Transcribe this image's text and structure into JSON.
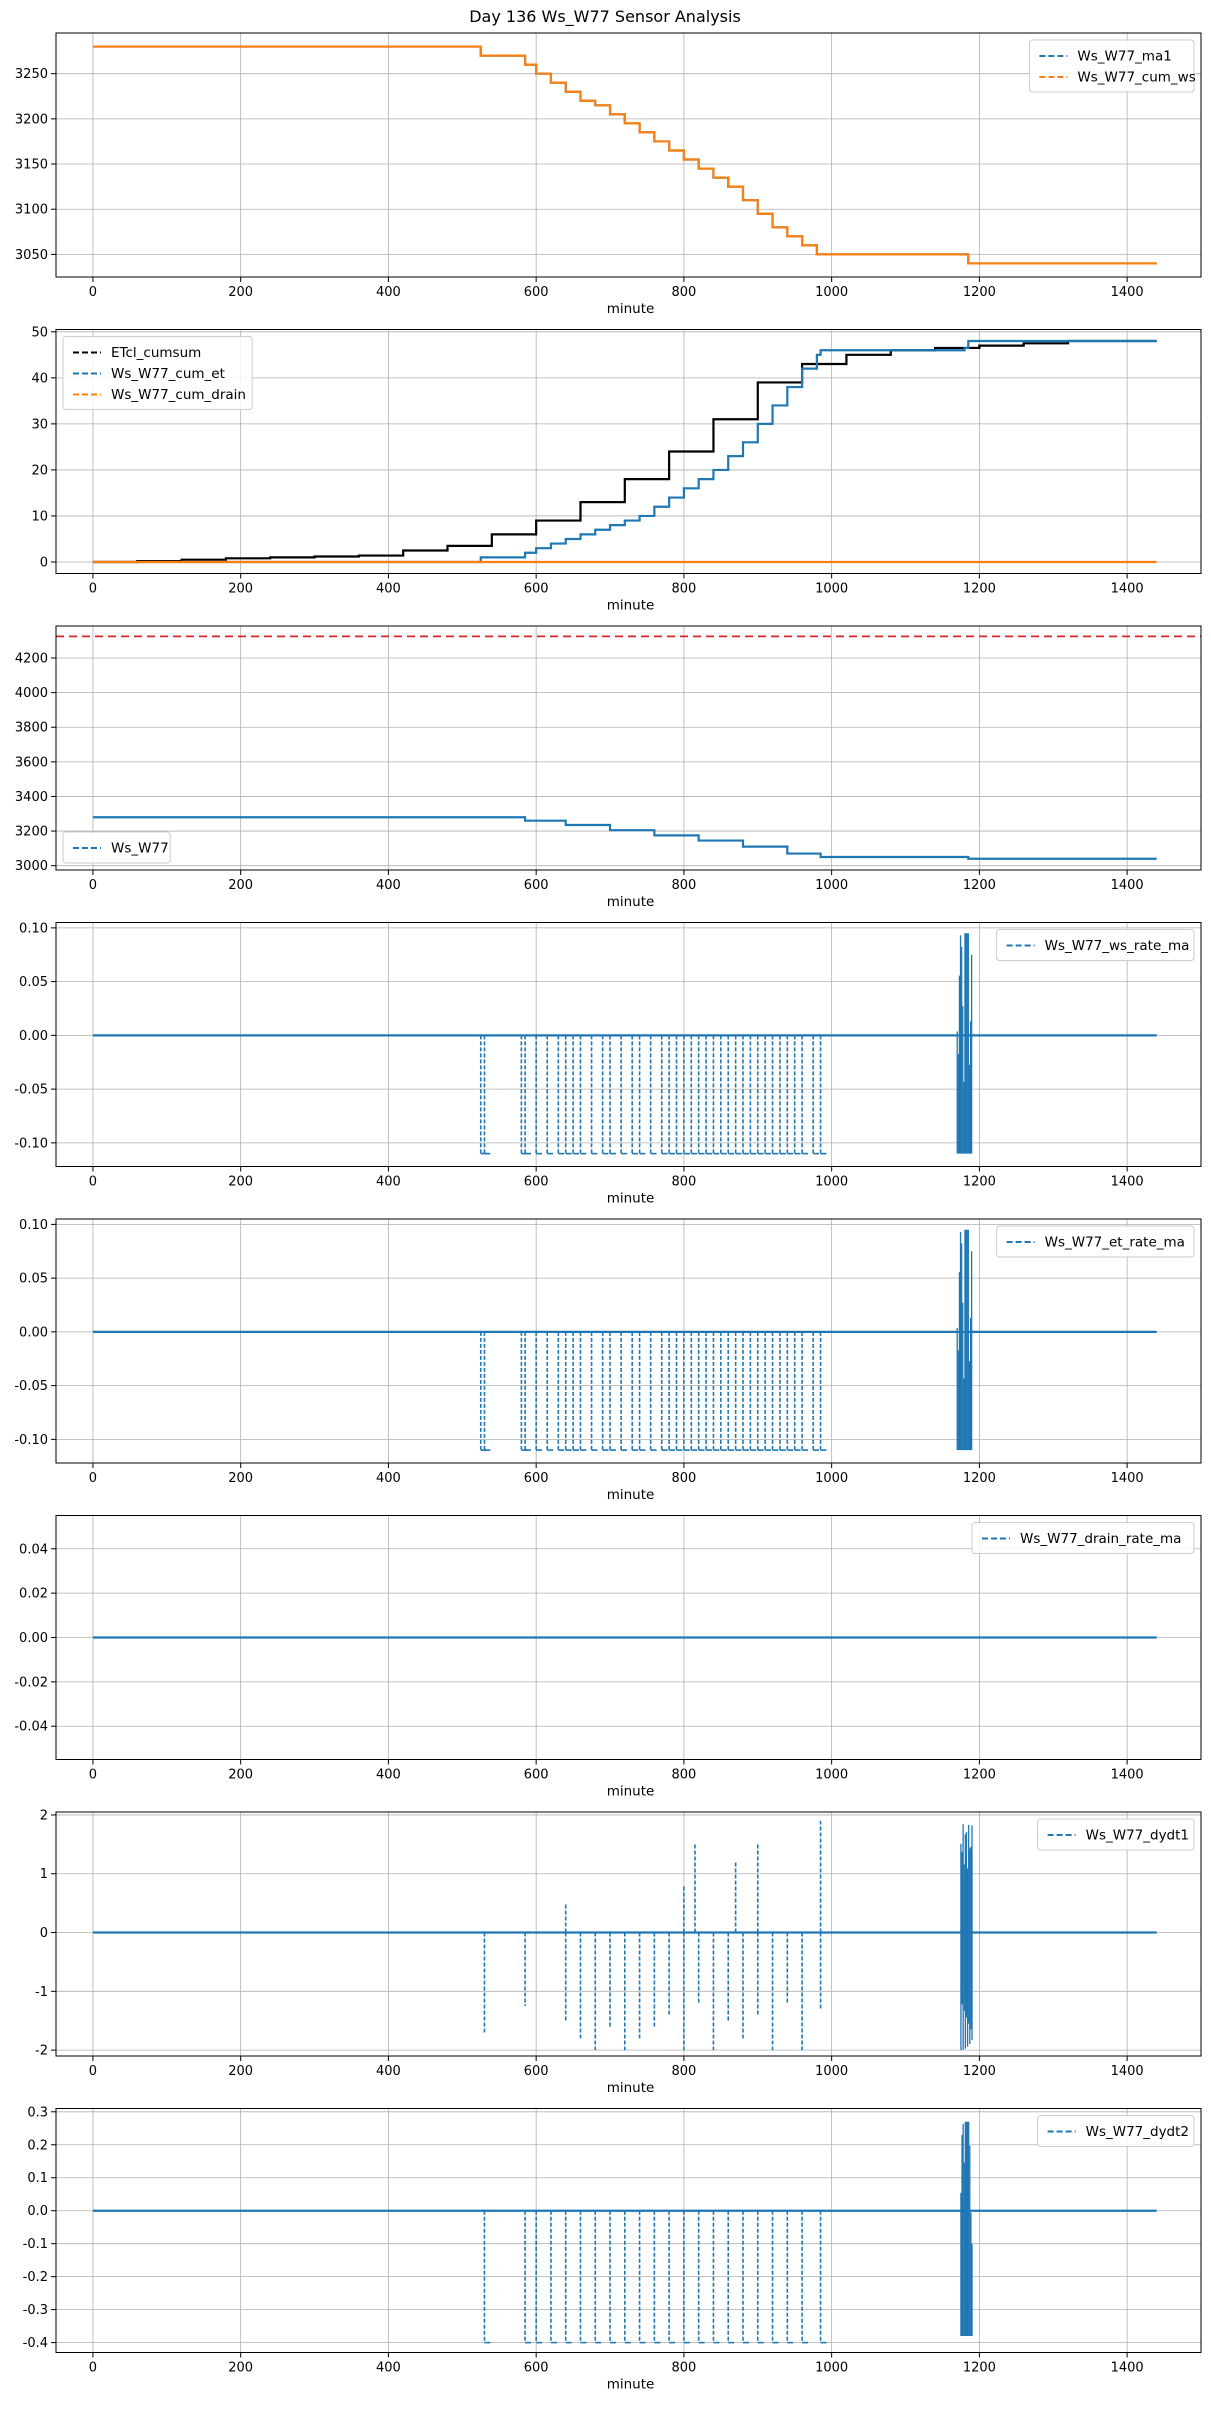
{
  "figure_title": "Day 136 Ws_W77 Sensor Analysis",
  "chart_data": [
    {
      "type": "line",
      "xlabel": "minute",
      "xlim": [
        -50,
        1500
      ],
      "ylim": [
        3025,
        3295
      ],
      "xticks": [
        0,
        200,
        400,
        600,
        800,
        1000,
        1200,
        1400
      ],
      "yticks": [
        3050,
        3100,
        3150,
        3200,
        3250
      ],
      "grid": true,
      "legend_position": "top-right",
      "series": [
        {
          "name": "Ws_W77_ma1",
          "style": "dashed",
          "color": "#1f77b4",
          "x": [
            0,
            525,
            525,
            585,
            600,
            620,
            640,
            660,
            680,
            700,
            720,
            740,
            760,
            780,
            800,
            820,
            840,
            860,
            880,
            900,
            920,
            940,
            960,
            980,
            985,
            1180,
            1185,
            1440
          ],
          "y": [
            3280,
            3280,
            3270,
            3260,
            3250,
            3240,
            3230,
            3220,
            3215,
            3205,
            3195,
            3185,
            3175,
            3165,
            3155,
            3145,
            3135,
            3125,
            3110,
            3095,
            3080,
            3070,
            3060,
            3050,
            3050,
            3050,
            3040,
            3040
          ]
        },
        {
          "name": "Ws_W77_cum_ws",
          "style": "solid",
          "color": "#ff7f0e",
          "x": [
            0,
            525,
            525,
            585,
            600,
            620,
            640,
            660,
            680,
            700,
            720,
            740,
            760,
            780,
            800,
            820,
            840,
            860,
            880,
            900,
            920,
            940,
            960,
            980,
            985,
            1180,
            1185,
            1440
          ],
          "y": [
            3280,
            3280,
            3270,
            3260,
            3250,
            3240,
            3230,
            3220,
            3215,
            3205,
            3195,
            3185,
            3175,
            3165,
            3155,
            3145,
            3135,
            3125,
            3110,
            3095,
            3080,
            3070,
            3060,
            3050,
            3050,
            3050,
            3040,
            3040
          ]
        }
      ]
    },
    {
      "type": "line",
      "xlabel": "minute",
      "xlim": [
        -50,
        1500
      ],
      "ylim": [
        -2.5,
        50.5
      ],
      "xticks": [
        0,
        200,
        400,
        600,
        800,
        1000,
        1200,
        1400
      ],
      "yticks": [
        0,
        10,
        20,
        30,
        40,
        50
      ],
      "grid": true,
      "legend_position": "top-left",
      "series": [
        {
          "name": "ETcl_cumsum",
          "style": "solid",
          "color": "#000000",
          "x": [
            0,
            60,
            120,
            180,
            240,
            300,
            360,
            420,
            480,
            540,
            600,
            660,
            720,
            780,
            840,
            900,
            960,
            1020,
            1080,
            1140,
            1200,
            1260,
            1320,
            1380,
            1440
          ],
          "y": [
            0,
            0.2,
            0.5,
            0.8,
            1.0,
            1.2,
            1.4,
            2.5,
            3.5,
            6.0,
            9.0,
            13.0,
            18.0,
            24.0,
            31.0,
            39.0,
            43.0,
            45.0,
            46.0,
            46.5,
            47.0,
            47.5,
            48.0,
            48.0,
            48.0
          ]
        },
        {
          "name": "Ws_W77_cum_et",
          "style": "dashed",
          "color": "#1f77b4",
          "x": [
            0,
            525,
            525,
            585,
            600,
            620,
            640,
            660,
            680,
            700,
            720,
            740,
            760,
            780,
            800,
            820,
            840,
            860,
            880,
            900,
            920,
            940,
            960,
            980,
            985,
            1180,
            1185,
            1440
          ],
          "y": [
            0,
            0,
            1,
            2,
            3,
            4,
            5,
            6,
            7,
            8,
            9,
            10,
            12,
            14,
            16,
            18,
            20,
            23,
            26,
            30,
            34,
            38,
            42,
            45,
            46,
            46.5,
            48,
            48
          ]
        },
        {
          "name": "Ws_W77_cum_drain",
          "style": "dashed",
          "color": "#ff7f0e",
          "x": [
            0,
            1440
          ],
          "y": [
            0,
            0
          ]
        }
      ]
    },
    {
      "type": "line",
      "xlabel": "minute",
      "xlim": [
        -50,
        1500
      ],
      "ylim": [
        2975,
        4385
      ],
      "xticks": [
        0,
        200,
        400,
        600,
        800,
        1000,
        1200,
        1400
      ],
      "yticks": [
        3000,
        3200,
        3400,
        3600,
        3800,
        4000,
        4200
      ],
      "grid": true,
      "legend_position": "bottom-left",
      "hline": {
        "y": 4325,
        "color": "#d62728",
        "style": "dashed"
      },
      "series": [
        {
          "name": "Ws_W77",
          "style": "dashed",
          "color": "#1f77b4",
          "x": [
            0,
            525,
            585,
            640,
            700,
            760,
            820,
            880,
            940,
            985,
            1180,
            1185,
            1440
          ],
          "y": [
            3280,
            3280,
            3260,
            3235,
            3205,
            3175,
            3145,
            3110,
            3070,
            3050,
            3050,
            3040,
            3040
          ]
        }
      ]
    },
    {
      "type": "line",
      "xlabel": "minute",
      "xlim": [
        -50,
        1500
      ],
      "ylim": [
        -0.122,
        0.105
      ],
      "xticks": [
        0,
        200,
        400,
        600,
        800,
        1000,
        1200,
        1400
      ],
      "yticks": [
        -0.1,
        -0.05,
        0.0,
        0.05,
        0.1
      ],
      "ytick_labels": [
        "-0.10",
        "-0.05",
        "0.00",
        "0.05",
        "0.10"
      ],
      "grid": true,
      "legend_position": "top-right",
      "spikes": {
        "positions": [
          525,
          530,
          580,
          585,
          600,
          615,
          630,
          640,
          650,
          660,
          675,
          690,
          700,
          715,
          730,
          740,
          755,
          770,
          780,
          790,
          800,
          810,
          820,
          830,
          840,
          850,
          860,
          870,
          880,
          890,
          900,
          910,
          920,
          930,
          940,
          950,
          960,
          975,
          985
        ],
        "low": -0.11,
        "high": 0.0,
        "burst_from": 1170,
        "burst_to": 1190,
        "burst_low": -0.11,
        "burst_high": 0.095
      },
      "series": [
        {
          "name": "Ws_W77_ws_rate_ma",
          "style": "dashed",
          "color": "#1f77b4",
          "x": [
            0,
            1440
          ],
          "y": [
            0,
            0
          ]
        }
      ]
    },
    {
      "type": "line",
      "xlabel": "minute",
      "xlim": [
        -50,
        1500
      ],
      "ylim": [
        -0.122,
        0.105
      ],
      "xticks": [
        0,
        200,
        400,
        600,
        800,
        1000,
        1200,
        1400
      ],
      "yticks": [
        -0.1,
        -0.05,
        0.0,
        0.05,
        0.1
      ],
      "ytick_labels": [
        "-0.10",
        "-0.05",
        "0.00",
        "0.05",
        "0.10"
      ],
      "grid": true,
      "legend_position": "top-right",
      "spikes": {
        "positions": [
          525,
          530,
          580,
          585,
          600,
          615,
          630,
          640,
          650,
          660,
          675,
          690,
          700,
          715,
          730,
          740,
          755,
          770,
          780,
          790,
          800,
          810,
          820,
          830,
          840,
          850,
          860,
          870,
          880,
          890,
          900,
          910,
          920,
          930,
          940,
          950,
          960,
          975,
          985
        ],
        "low": -0.11,
        "high": 0.0,
        "burst_from": 1170,
        "burst_to": 1190,
        "burst_low": -0.11,
        "burst_high": 0.095
      },
      "series": [
        {
          "name": "Ws_W77_et_rate_ma",
          "style": "dashed",
          "color": "#1f77b4",
          "x": [
            0,
            1440
          ],
          "y": [
            0,
            0
          ]
        }
      ]
    },
    {
      "type": "line",
      "xlabel": "minute",
      "xlim": [
        -50,
        1500
      ],
      "ylim": [
        -0.055,
        0.055
      ],
      "xticks": [
        0,
        200,
        400,
        600,
        800,
        1000,
        1200,
        1400
      ],
      "yticks": [
        -0.04,
        -0.02,
        0.0,
        0.02,
        0.04
      ],
      "ytick_labels": [
        "-0.04",
        "-0.02",
        "0.00",
        "0.02",
        "0.04"
      ],
      "grid": true,
      "legend_position": "top-right",
      "series": [
        {
          "name": "Ws_W77_drain_rate_ma",
          "style": "dashed",
          "color": "#1f77b4",
          "x": [
            0,
            1440
          ],
          "y": [
            0,
            0
          ]
        }
      ]
    },
    {
      "type": "line",
      "xlabel": "minute",
      "xlim": [
        -50,
        1500
      ],
      "ylim": [
        -2.1,
        2.05
      ],
      "xticks": [
        0,
        200,
        400,
        600,
        800,
        1000,
        1200,
        1400
      ],
      "yticks": [
        -2,
        -1,
        0,
        1,
        2
      ],
      "ytick_labels": [
        "-2",
        "-1",
        "0",
        "1",
        "2"
      ],
      "grid": true,
      "legend_position": "top-right",
      "spike_list": [
        [
          530,
          -1.7
        ],
        [
          585,
          -1.25
        ],
        [
          640,
          0.5
        ],
        [
          640,
          -1.5
        ],
        [
          660,
          -1.8
        ],
        [
          680,
          -2.0
        ],
        [
          700,
          -1.6
        ],
        [
          720,
          -2.0
        ],
        [
          740,
          -1.8
        ],
        [
          760,
          -1.6
        ],
        [
          780,
          -1.4
        ],
        [
          800,
          0.8
        ],
        [
          800,
          -2.0
        ],
        [
          815,
          1.5
        ],
        [
          820,
          -1.2
        ],
        [
          840,
          -2.0
        ],
        [
          860,
          -1.5
        ],
        [
          870,
          1.2
        ],
        [
          880,
          -1.8
        ],
        [
          900,
          1.5
        ],
        [
          900,
          -1.4
        ],
        [
          920,
          -2.0
        ],
        [
          940,
          -1.2
        ],
        [
          960,
          -2.0
        ],
        [
          985,
          1.9
        ],
        [
          985,
          -1.3
        ]
      ],
      "burst": {
        "from": 1175,
        "to": 1190,
        "low": -2.0,
        "high": 1.85
      },
      "series": [
        {
          "name": "Ws_W77_dydt1",
          "style": "dashed",
          "color": "#1f77b4",
          "x": [
            0,
            1440
          ],
          "y": [
            0,
            0
          ]
        }
      ]
    },
    {
      "type": "line",
      "xlabel": "minute",
      "xlim": [
        -50,
        1500
      ],
      "ylim": [
        -0.43,
        0.31
      ],
      "xticks": [
        0,
        200,
        400,
        600,
        800,
        1000,
        1200,
        1400
      ],
      "yticks": [
        -0.4,
        -0.3,
        -0.2,
        -0.1,
        0.0,
        0.1,
        0.2,
        0.3
      ],
      "ytick_labels": [
        "-0.4",
        "-0.3",
        "-0.2",
        "-0.1",
        "0.0",
        "0.1",
        "0.2",
        "0.3"
      ],
      "grid": true,
      "legend_position": "top-right",
      "spikes": {
        "positions": [
          530,
          585,
          600,
          620,
          640,
          660,
          680,
          700,
          720,
          740,
          760,
          780,
          800,
          820,
          840,
          860,
          880,
          900,
          920,
          940,
          960,
          985
        ],
        "low": -0.4,
        "high": 0.0,
        "burst_from": 1175,
        "burst_to": 1190,
        "burst_low": -0.38,
        "burst_high": 0.27
      },
      "series": [
        {
          "name": "Ws_W77_dydt2",
          "style": "dashed",
          "color": "#1f77b4",
          "x": [
            0,
            1440
          ],
          "y": [
            0,
            0
          ]
        }
      ]
    }
  ]
}
